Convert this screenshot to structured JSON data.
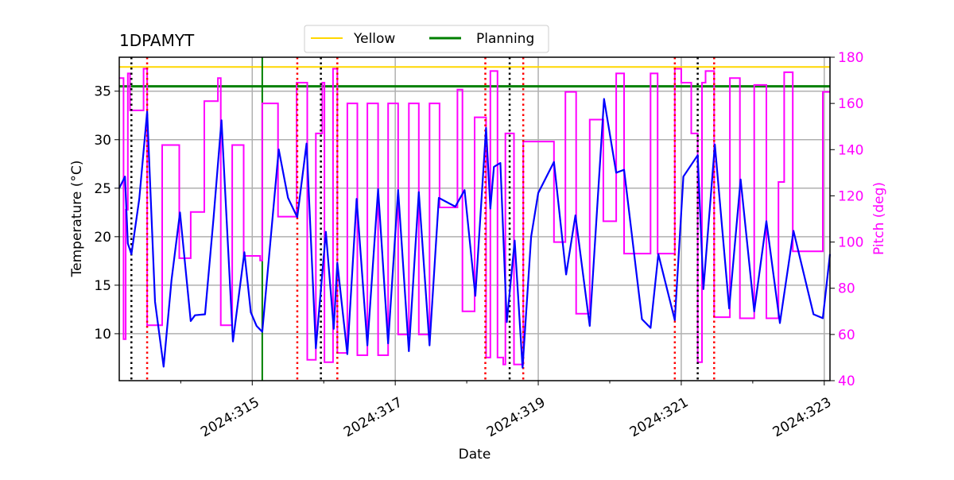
{
  "chart_data": {
    "type": "line",
    "title": "1DPAMYT",
    "xlabel": "Date",
    "ylabel": "Temperature ($^\\circ$C)",
    "ylabel_display": "Temperature (°C)",
    "y2label": "Pitch (deg)",
    "xlim": [
      313.14,
      323.08
    ],
    "ylim": [
      5.16,
      38.5
    ],
    "y2lim": [
      40,
      180
    ],
    "grid": true,
    "legend_placement": "top-center",
    "x_ticks": [
      315,
      317,
      319,
      321,
      323
    ],
    "x_tick_labels": [
      "2024:315",
      "2024:317",
      "2024:319",
      "2024:321",
      "2024:323"
    ],
    "x_minor_ticks": [
      314,
      316,
      318,
      320,
      322
    ],
    "y_ticks": [
      10,
      15,
      20,
      25,
      30,
      35
    ],
    "y2_ticks": [
      40,
      60,
      80,
      100,
      120,
      140,
      160,
      180
    ],
    "colors": {
      "temperature": "#0000ff",
      "pitch": "#ff00ff",
      "yellow": "#ffd700",
      "planning": "#008000",
      "red_lines": "#ff0000",
      "black_lines": "#000000"
    },
    "hlines": [
      {
        "name": "Yellow",
        "value": 37.5,
        "color": "#ffd700"
      },
      {
        "name": "Planning",
        "value": 35.5,
        "color": "#008000"
      }
    ],
    "legend": [
      "Yellow",
      "Planning"
    ],
    "green_vline": 315.14,
    "black_dotted_vlines": [
      313.31,
      315.96,
      318.6,
      321.23
    ],
    "red_dotted_vlines": [
      313.53,
      315.63,
      316.19,
      318.26,
      318.79,
      320.91,
      321.46
    ],
    "temperature": [
      [
        313.14,
        25.0
      ],
      [
        313.22,
        26.2
      ],
      [
        313.26,
        19.3
      ],
      [
        313.31,
        18.2
      ],
      [
        313.42,
        23.9
      ],
      [
        313.53,
        32.9
      ],
      [
        313.64,
        13.3
      ],
      [
        313.76,
        6.6
      ],
      [
        313.87,
        15.5
      ],
      [
        313.99,
        22.5
      ],
      [
        314.14,
        11.3
      ],
      [
        314.2,
        11.9
      ],
      [
        314.34,
        12.0
      ],
      [
        314.46,
        22
      ],
      [
        314.57,
        32.0
      ],
      [
        314.73,
        9.2
      ],
      [
        314.89,
        18.4
      ],
      [
        314.98,
        12.2
      ],
      [
        315.06,
        10.8
      ],
      [
        315.14,
        10.2
      ],
      [
        315.37,
        29.0
      ],
      [
        315.5,
        24
      ],
      [
        315.63,
        22.0
      ],
      [
        315.76,
        29.6
      ],
      [
        315.89,
        8.5
      ],
      [
        316.03,
        20.5
      ],
      [
        316.14,
        10.5
      ],
      [
        316.19,
        17.3
      ],
      [
        316.33,
        7.9
      ],
      [
        316.46,
        23.9
      ],
      [
        316.61,
        8.8
      ],
      [
        316.76,
        24.9
      ],
      [
        316.9,
        9.0
      ],
      [
        317.04,
        24.8
      ],
      [
        317.19,
        8.2
      ],
      [
        317.33,
        24.6
      ],
      [
        317.48,
        8.8
      ],
      [
        317.61,
        24.0
      ],
      [
        317.84,
        23.1
      ],
      [
        317.97,
        24.8
      ],
      [
        318.12,
        13.9
      ],
      [
        318.27,
        31.2
      ],
      [
        318.33,
        22.9
      ],
      [
        318.38,
        27.2
      ],
      [
        318.47,
        27.6
      ],
      [
        318.56,
        11.2
      ],
      [
        318.67,
        19.6
      ],
      [
        318.78,
        6.5
      ],
      [
        318.9,
        20
      ],
      [
        319.0,
        24.5
      ],
      [
        319.22,
        27.7
      ],
      [
        319.39,
        16.1
      ],
      [
        319.52,
        22.2
      ],
      [
        319.72,
        10.8
      ],
      [
        319.92,
        34.2
      ],
      [
        320.09,
        26.6
      ],
      [
        320.2,
        26.9
      ],
      [
        320.45,
        11.5
      ],
      [
        320.57,
        10.6
      ],
      [
        320.68,
        18.2
      ],
      [
        320.91,
        11.4
      ],
      [
        321.03,
        26.2
      ],
      [
        321.23,
        28.4
      ],
      [
        321.31,
        14.6
      ],
      [
        321.47,
        29.5
      ],
      [
        321.67,
        12.6
      ],
      [
        321.83,
        25.9
      ],
      [
        322.02,
        12.3
      ],
      [
        322.19,
        21.6
      ],
      [
        322.38,
        11.1
      ],
      [
        322.57,
        20.6
      ],
      [
        322.85,
        12
      ],
      [
        322.98,
        11.6
      ],
      [
        323.08,
        18.2
      ]
    ],
    "pitch_steps": [
      [
        313.14,
        171
      ],
      [
        313.2,
        58
      ],
      [
        313.23,
        114
      ],
      [
        313.26,
        173
      ],
      [
        313.29,
        157
      ],
      [
        313.48,
        175
      ],
      [
        313.53,
        64
      ],
      [
        313.74,
        142
      ],
      [
        313.98,
        93
      ],
      [
        314.14,
        113
      ],
      [
        314.33,
        161
      ],
      [
        314.52,
        171
      ],
      [
        314.56,
        64
      ],
      [
        314.72,
        142
      ],
      [
        314.88,
        94
      ],
      [
        315.11,
        92
      ],
      [
        315.14,
        160
      ],
      [
        315.36,
        111
      ],
      [
        315.62,
        169
      ],
      [
        315.77,
        49
      ],
      [
        315.89,
        147
      ],
      [
        315.98,
        169
      ],
      [
        316.01,
        48
      ],
      [
        316.13,
        175
      ],
      [
        316.19,
        52
      ],
      [
        316.33,
        160
      ],
      [
        316.47,
        51
      ],
      [
        316.61,
        160
      ],
      [
        316.76,
        51
      ],
      [
        316.9,
        160
      ],
      [
        317.04,
        60
      ],
      [
        317.19,
        160
      ],
      [
        317.33,
        60
      ],
      [
        317.48,
        160
      ],
      [
        317.62,
        115
      ],
      [
        317.87,
        166
      ],
      [
        317.94,
        70
      ],
      [
        318.11,
        154
      ],
      [
        318.27,
        50
      ],
      [
        318.33,
        174
      ],
      [
        318.43,
        50
      ],
      [
        318.51,
        47
      ],
      [
        318.54,
        147
      ],
      [
        318.66,
        47
      ],
      [
        318.79,
        143.5
      ],
      [
        319.22,
        100
      ],
      [
        319.38,
        165
      ],
      [
        319.53,
        69
      ],
      [
        319.72,
        153
      ],
      [
        319.91,
        109
      ],
      [
        320.09,
        173
      ],
      [
        320.2,
        95
      ],
      [
        320.57,
        173
      ],
      [
        320.67,
        95
      ],
      [
        320.91,
        175
      ],
      [
        321.0,
        169
      ],
      [
        321.14,
        147
      ],
      [
        321.23,
        48
      ],
      [
        321.29,
        169
      ],
      [
        321.34,
        174
      ],
      [
        321.46,
        67.5
      ],
      [
        321.68,
        171
      ],
      [
        321.82,
        67
      ],
      [
        322.02,
        168
      ],
      [
        322.19,
        67
      ],
      [
        322.36,
        126
      ],
      [
        322.44,
        173.5
      ],
      [
        322.56,
        96
      ],
      [
        322.98,
        165
      ],
      [
        323.08,
        165
      ]
    ]
  }
}
